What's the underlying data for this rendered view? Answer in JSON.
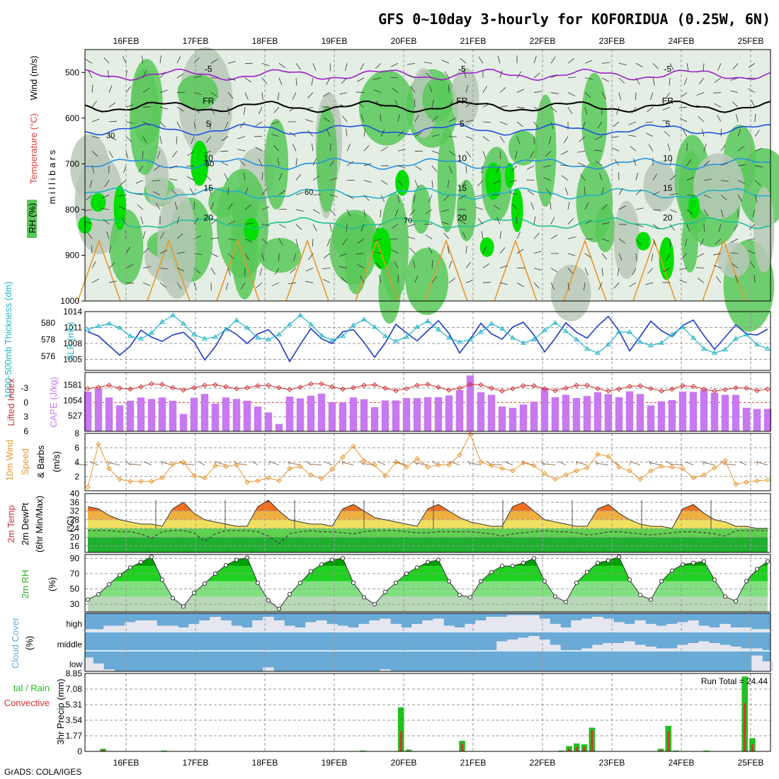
{
  "title": "GFS 0~10day 3-hourly for KOFORIDUA (0.25W, 6N)",
  "credit": "GrADS: COLA/IGES",
  "dates": [
    "16FEB",
    "17FEB",
    "18FEB",
    "19FEB",
    "20FEB",
    "21FEB",
    "22FEB",
    "23FEB",
    "24FEB",
    "25FEB"
  ],
  "colors": {
    "rh_green": "#58c858",
    "rh_bright": "#00e000",
    "rh_grey": "#b8c8b8",
    "temp_purple": "#9b20c8",
    "temp_blue": "#1e50e0",
    "temp_cyan": "#20b0c8",
    "slp": "#1e3cc8",
    "thickness": "#20b4c8",
    "cape": "#c878f0",
    "lifted": "#d03030",
    "wind_speed": "#e8962c",
    "barbs": "#8c6446",
    "cloud_sky": "#6aaad6",
    "cloud": "#e6e6f0",
    "precip_total": "#20c020",
    "precip_conv": "#e03030"
  },
  "chart_data": [
    {
      "type": "heatmap",
      "name_label": "Wind (m/s) Temperature (°C) RH (%)",
      "ylabel": "m i l l i b a r s",
      "y_ticks": [
        "500",
        "600",
        "700",
        "800",
        "900",
        "1000"
      ],
      "ylim": [
        1000,
        450
      ],
      "temperature_contours": [
        {
          "label": "-5",
          "pressure": 505
        },
        {
          "label": "FR",
          "pressure": 575
        },
        {
          "label": "5",
          "pressure": 625
        },
        {
          "label": "10",
          "pressure": 700
        },
        {
          "label": "15",
          "pressure": 765
        },
        {
          "label": "20",
          "pressure": 830
        }
      ],
      "rh_labels": [
        "30",
        "50",
        "60",
        "70"
      ]
    },
    {
      "type": "line",
      "left_label": "1000-500mb Thickness (dm)",
      "right_label": "SLP (mb)",
      "left_ticks": [
        "576",
        "578",
        "580"
      ],
      "right_ticks": [
        "1005",
        "1008",
        "1011",
        "1014"
      ],
      "ylim_slp": [
        1004,
        1014
      ],
      "series": [
        {
          "name": "SLP (mb)",
          "values": [
            1010.2,
            1009.4,
            1007.6,
            1005.8,
            1007.5,
            1010.5,
            1009.2,
            1008.4,
            1009.6,
            1010.1,
            1008.3,
            1004.9,
            1007.4,
            1010.9,
            1009.7,
            1008.0,
            1009.8,
            1010.6,
            1008.5,
            1004.6,
            1007.8,
            1010.8,
            1008.9,
            1008.0,
            1010.2,
            1010.6,
            1008.2,
            1005.4,
            1008.1,
            1011.6,
            1010.0,
            1008.5,
            1010.4,
            1012.3,
            1009.9,
            1006.2,
            1008.8,
            1011.8,
            1009.8,
            1008.8,
            1011.1,
            1012.0,
            1009.6,
            1006.4,
            1009.0,
            1011.9,
            1010.1,
            1009.0,
            1011.3,
            1013.1,
            1010.4,
            1006.6,
            1009.3,
            1012.2,
            1010.4,
            1009.3,
            1011.4,
            1012.4,
            1009.5,
            1006.9,
            1009.2,
            1011.5,
            1009.8,
            1009.6,
            1010.7
          ]
        },
        {
          "name": "1000-500mb Thickness (dm)",
          "values": [
            579.2,
            579.6,
            579.9,
            579.4,
            578.4,
            578.1,
            578.8,
            580.1,
            580.9,
            579.9,
            578.6,
            578.1,
            578.3,
            579.2,
            580.3,
            579.4,
            578.2,
            578.0,
            578.6,
            579.8,
            580.9,
            579.8,
            578.5,
            577.9,
            578.4,
            579.7,
            580.4,
            579.5,
            578.4,
            577.8,
            578.3,
            579.5,
            580.2,
            579.2,
            578.2,
            577.7,
            578.0,
            578.9,
            579.9,
            579.3,
            578.2,
            577.6,
            578.0,
            579.1,
            580.0,
            579.0,
            578.0,
            576.9,
            576.4,
            577.4,
            578.9,
            578.9,
            577.7,
            577.3,
            577.6,
            578.6,
            579.5,
            578.2,
            576.9,
            576.4,
            576.8,
            578.1,
            578.6,
            577.4,
            576.9
          ]
        }
      ]
    },
    {
      "type": "bar",
      "left_label": "Lifted Index",
      "right_label": "CAPE (J/kg)",
      "left_ticks": [
        "-3",
        "0",
        "3",
        "6"
      ],
      "right_ticks": [
        "527",
        "1054",
        "1581"
      ],
      "series": [
        {
          "name": "CAPE (J/kg)",
          "values": [
            1350,
            1450,
            1150,
            880,
            1040,
            1150,
            1100,
            1150,
            1040,
            590,
            1140,
            1270,
            940,
            1150,
            1100,
            1040,
            840,
            640,
            250,
            1180,
            1120,
            1210,
            1280,
            990,
            980,
            1150,
            1090,
            820,
            1050,
            1050,
            1130,
            1130,
            1160,
            1160,
            1220,
            1400,
            1900,
            1330,
            1240,
            840,
            800,
            910,
            1010,
            1480,
            1160,
            1240,
            1130,
            1200,
            1330,
            1260,
            1160,
            1360,
            1270,
            880,
            1020,
            1060,
            1350,
            1340,
            1410,
            1310,
            1240,
            1240,
            800,
            760,
            760
          ]
        },
        {
          "name": "Lifted Index",
          "values": [
            -2.9,
            -3.2,
            -3.6,
            -3.0,
            -2.8,
            -3.3,
            -3.9,
            -3.8,
            -3.1,
            -2.6,
            -3.1,
            -3.6,
            -3.7,
            -3.3,
            -2.9,
            -3.1,
            -3.5,
            -3.6,
            -3.1,
            -2.7,
            -3.2,
            -3.9,
            -3.9,
            -3.3,
            -2.8,
            -3.1,
            -3.6,
            -3.7,
            -3.0,
            -2.5,
            -2.9,
            -3.6,
            -3.8,
            -3.2,
            -2.6,
            -3.0,
            -3.8,
            -3.7,
            -3.0,
            -2.4,
            -2.9,
            -3.5,
            -3.5,
            -2.9,
            -2.5,
            -3.0,
            -3.6,
            -3.6,
            -2.9,
            -2.4,
            -2.8,
            -3.4,
            -3.5,
            -2.9,
            -2.4,
            -2.8,
            -3.5,
            -3.4,
            -2.8,
            -2.4,
            -2.7,
            -3.1,
            -3.0,
            -2.5,
            -2.8
          ]
        }
      ]
    },
    {
      "type": "line",
      "label": "10m Wind Speed (m/s) & Barbs",
      "y_ticks": [
        "2",
        "4",
        "6",
        "8"
      ],
      "ylim": [
        0,
        8
      ],
      "series": [
        {
          "name": "10m Wind Speed (m/s)",
          "values": [
            0.5,
            6.5,
            3.1,
            1.6,
            1.3,
            1.3,
            1.3,
            1.8,
            3.7,
            4.0,
            2.1,
            1.8,
            3.5,
            3.4,
            3.6,
            1.2,
            1.4,
            1.8,
            1.4,
            3.1,
            3.4,
            2.2,
            1.7,
            3.0,
            4.7,
            6.2,
            4.2,
            3.6,
            2.1,
            4.0,
            3.3,
            4.5,
            3.3,
            3.6,
            3.6,
            5.0,
            7.9,
            4.0,
            3.5,
            3.1,
            2.8,
            3.9,
            3.5,
            2.4,
            1.6,
            2.2,
            2.8,
            3.2,
            5.1,
            4.8,
            3.3,
            2.8,
            1.6,
            2.8,
            3.4,
            3.3,
            3.1,
            1.8,
            2.2,
            3.2,
            4.2,
            0.9,
            1.2,
            1.4,
            1.5
          ]
        }
      ]
    },
    {
      "type": "area",
      "label": "2m Temp 2m DewPt (6hr Min/Max) (°C)",
      "y_ticks": [
        "16",
        "20",
        "24",
        "28",
        "32",
        "36",
        "40"
      ],
      "ylim": [
        13,
        40
      ],
      "series": [
        {
          "name": "2m Temp",
          "values": [
            34,
            33,
            30,
            28,
            27,
            26,
            26,
            25,
            33,
            36,
            31,
            28,
            27,
            26,
            25,
            25,
            34,
            37,
            32,
            28,
            27,
            26,
            26,
            25,
            33,
            35,
            32,
            29,
            28,
            27,
            26,
            25,
            33,
            35,
            32,
            29,
            27,
            26,
            25,
            25,
            34,
            36,
            32,
            28,
            27,
            26,
            25,
            25,
            33,
            35,
            31,
            28,
            26,
            25,
            25,
            24,
            33,
            35,
            31,
            28,
            27,
            25,
            25,
            24,
            24
          ]
        },
        {
          "name": "2m DewPt",
          "values": [
            23,
            23,
            23,
            22.5,
            22.5,
            21.5,
            19.5,
            22.5,
            23,
            23,
            22,
            18,
            21.5,
            23,
            23,
            23,
            22.5,
            20.5,
            17,
            21.5,
            22.5,
            23,
            22.5,
            22.5,
            22,
            21.5,
            22.5,
            23,
            23,
            23,
            22.5,
            22,
            22,
            22.5,
            22.5,
            22.5,
            22.5,
            22,
            21.5,
            20.5,
            21.5,
            22,
            22.5,
            23,
            22.5,
            22.5,
            22,
            21,
            21.5,
            22.5,
            22.5,
            22,
            21.5,
            21,
            21.5,
            22,
            22.5,
            22.5,
            22,
            21.5,
            20.5,
            23,
            23,
            23,
            23
          ]
        }
      ]
    },
    {
      "type": "area",
      "label": "2m RH (%)",
      "y_ticks": [
        "30",
        "50",
        "70",
        "90"
      ],
      "ylim": [
        20,
        95
      ],
      "series": [
        {
          "name": "2m RH",
          "values": [
            36,
            43,
            56,
            68,
            78,
            85,
            92,
            62,
            38,
            27,
            45,
            57,
            70,
            81,
            88,
            91,
            58,
            35,
            24,
            43,
            58,
            73,
            82,
            88,
            90,
            58,
            39,
            30,
            46,
            58,
            70,
            78,
            85,
            88,
            60,
            42,
            39,
            60,
            72,
            80,
            80,
            84,
            90,
            60,
            40,
            33,
            58,
            72,
            84,
            87,
            92,
            62,
            42,
            36,
            60,
            74,
            82,
            84,
            86,
            62,
            40,
            34,
            60,
            76,
            86
          ]
        }
      ]
    },
    {
      "type": "area",
      "label": "Cloud Cover (%)",
      "y_ticks": [
        "high",
        "middle",
        "low"
      ],
      "ylim": [
        0,
        100
      ],
      "series": [
        {
          "name": "high",
          "values": [
            10,
            10,
            30,
            30,
            50,
            60,
            60,
            30,
            30,
            20,
            40,
            60,
            80,
            60,
            30,
            20,
            60,
            80,
            60,
            30,
            20,
            50,
            60,
            40,
            30,
            20,
            40,
            60,
            70,
            40,
            20,
            40,
            60,
            70,
            30,
            20,
            40,
            60,
            80,
            80,
            90,
            90,
            90,
            70,
            40,
            20,
            60,
            70,
            80,
            70,
            50,
            40,
            60,
            40,
            30,
            40,
            50,
            60,
            30,
            20,
            40,
            20,
            20,
            10,
            10
          ]
        },
        {
          "name": "middle",
          "values": [
            0,
            0,
            0,
            0,
            0,
            0,
            0,
            0,
            0,
            0,
            0,
            0,
            0,
            0,
            0,
            0,
            0,
            0,
            0,
            0,
            0,
            0,
            0,
            0,
            0,
            0,
            0,
            0,
            0,
            0,
            0,
            0,
            0,
            0,
            0,
            0,
            0,
            0,
            0,
            50,
            60,
            70,
            80,
            60,
            30,
            0,
            0,
            10,
            30,
            40,
            40,
            50,
            30,
            20,
            10,
            10,
            30,
            40,
            50,
            40,
            30,
            20,
            10,
            10,
            0
          ]
        },
        {
          "name": "low",
          "values": [
            70,
            40,
            10,
            0,
            0,
            0,
            0,
            0,
            0,
            0,
            0,
            0,
            0,
            0,
            0,
            0,
            0,
            20,
            0,
            0,
            0,
            0,
            0,
            0,
            0,
            0,
            0,
            0,
            10,
            0,
            0,
            0,
            0,
            0,
            0,
            0,
            0,
            0,
            0,
            0,
            0,
            0,
            0,
            0,
            0,
            0,
            0,
            0,
            0,
            0,
            0,
            0,
            0,
            0,
            0,
            0,
            0,
            0,
            0,
            0,
            0,
            0,
            0,
            80,
            50
          ]
        }
      ]
    },
    {
      "type": "bar",
      "left_label": "Total / Rain Convective",
      "label": "3hr Precip (mm)",
      "y_ticks": [
        "0",
        "1.77",
        "3.54",
        "5.31",
        "7.08",
        "8.85"
      ],
      "ylim": [
        0,
        8.85
      ],
      "annotation": "Run Total = 24.44",
      "series": [
        {
          "name": "Total",
          "values": [
            0,
            0,
            0.3,
            0,
            0,
            0,
            0,
            0,
            0,
            0,
            0.1,
            0,
            0,
            0,
            0,
            0,
            0,
            0,
            0,
            0,
            0,
            0,
            0,
            0,
            0,
            0,
            0,
            0,
            0,
            0,
            0,
            0,
            0,
            0,
            0,
            0,
            0.1,
            0,
            0,
            0,
            0,
            5.0,
            0.2,
            0,
            0,
            0,
            0,
            0,
            0,
            1.2,
            0,
            0,
            0,
            0,
            0,
            0,
            0,
            0,
            0,
            0,
            0,
            0,
            0.1,
            0.6,
            0.9,
            0.8,
            2.7,
            0,
            0,
            0,
            0,
            0,
            0,
            0,
            0,
            0.3,
            2.9,
            0.1,
            0,
            0,
            0,
            0.1,
            0,
            0,
            0,
            0,
            8.5,
            1.5,
            0,
            0
          ]
        },
        {
          "name": "Convective",
          "values": [
            0,
            0,
            0.2,
            0,
            0,
            0,
            0,
            0,
            0,
            0,
            0.05,
            0,
            0,
            0,
            0,
            0,
            0,
            0,
            0,
            0,
            0,
            0,
            0,
            0,
            0,
            0,
            0,
            0,
            0,
            0,
            0,
            0,
            0,
            0,
            0,
            0,
            0.05,
            0,
            0,
            0,
            0,
            2.3,
            0.1,
            0,
            0,
            0,
            0,
            0,
            0,
            0.9,
            0,
            0,
            0,
            0,
            0,
            0,
            0,
            0,
            0,
            0,
            0,
            0,
            0.05,
            0.3,
            0.5,
            0.5,
            2.4,
            0,
            0,
            0,
            0,
            0,
            0,
            0,
            0,
            0.2,
            2.3,
            0.05,
            0,
            0,
            0,
            0.05,
            0,
            0,
            0,
            0,
            5.5,
            0.8,
            0,
            0
          ]
        }
      ]
    }
  ]
}
